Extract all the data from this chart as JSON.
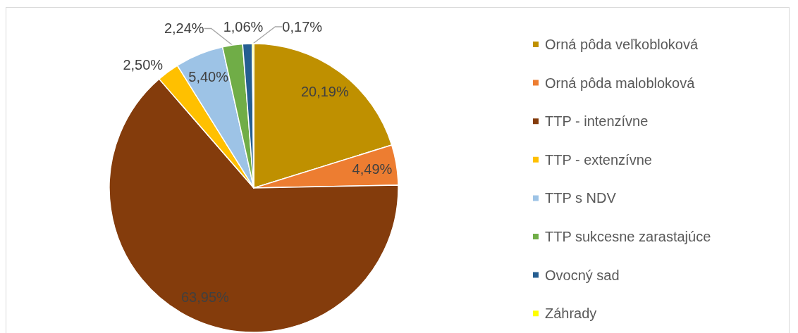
{
  "chart_data": {
    "type": "pie",
    "categories": [
      "Orná pôda veľkobloková",
      "Orná pôda malobloková",
      "TTP - intenzívne",
      "TTP - extenzívne",
      "TTP s NDV",
      "TTP sukcesne zarastajúce",
      "Ovocný sad",
      "Záhrady"
    ],
    "values": [
      20.19,
      4.49,
      63.95,
      2.5,
      5.4,
      2.24,
      1.06,
      0.17
    ],
    "value_labels": [
      "20,19%",
      "4,49%",
      "63,95%",
      "2,50%",
      "5,40%",
      "2,24%",
      "1,06%",
      "0,17%"
    ],
    "colors": [
      "#bf9000",
      "#ed7d31",
      "#843c0c",
      "#ffc000",
      "#9dc3e6",
      "#70ad47",
      "#255e91",
      "#ffff00"
    ],
    "legend": "right"
  }
}
